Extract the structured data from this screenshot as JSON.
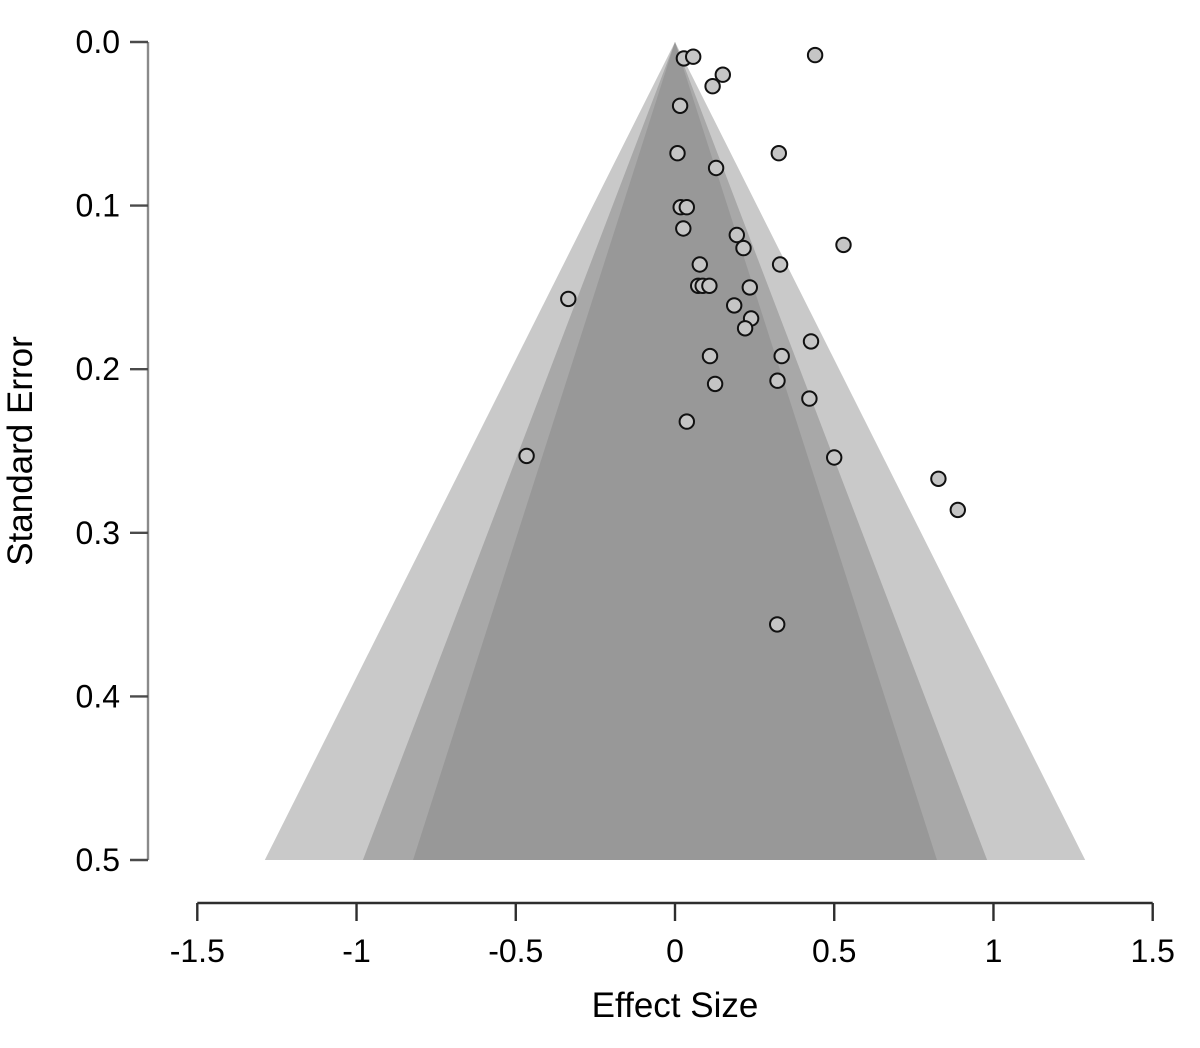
{
  "chart_data": {
    "type": "scatter",
    "subtype": "contour-enhanced-funnel-plot",
    "title": "",
    "xlabel": "Effect Size",
    "ylabel": "Standard Error",
    "xlim": [
      -1.5,
      1.5
    ],
    "ylim": [
      0.0,
      0.5
    ],
    "y_axis_reversed": true,
    "grid": false,
    "legend": "none",
    "x_ticks": [
      {
        "value": -1.5,
        "label": "-1.5"
      },
      {
        "value": -1.0,
        "label": "-1"
      },
      {
        "value": -0.5,
        "label": "-0.5"
      },
      {
        "value": 0.0,
        "label": "0"
      },
      {
        "value": 0.5,
        "label": "0.5"
      },
      {
        "value": 1.0,
        "label": "1"
      },
      {
        "value": 1.5,
        "label": "1.5"
      }
    ],
    "y_ticks": [
      {
        "value": 0.0,
        "label": "0.0"
      },
      {
        "value": 0.1,
        "label": "0.1"
      },
      {
        "value": 0.2,
        "label": "0.2"
      },
      {
        "value": 0.3,
        "label": "0.3"
      },
      {
        "value": 0.4,
        "label": "0.4"
      },
      {
        "value": 0.5,
        "label": "0.5"
      }
    ],
    "funnel": {
      "center_effect": 0.0,
      "apex_se": 0.0,
      "max_se": 0.5,
      "contours": [
        {
          "level": "90%",
          "z": 1.645,
          "fill": "#989898"
        },
        {
          "level": "95%",
          "z": 1.96,
          "fill": "#a8a8a8"
        },
        {
          "level": "99%",
          "z": 2.576,
          "fill": "#c9c9c9"
        }
      ]
    },
    "points": [
      {
        "effect": 0.028,
        "se": 0.01
      },
      {
        "effect": 0.057,
        "se": 0.009
      },
      {
        "effect": 0.44,
        "se": 0.008
      },
      {
        "effect": 0.15,
        "se": 0.02
      },
      {
        "effect": 0.118,
        "se": 0.027
      },
      {
        "effect": 0.016,
        "se": 0.039
      },
      {
        "effect": 0.008,
        "se": 0.068
      },
      {
        "effect": 0.326,
        "se": 0.068
      },
      {
        "effect": 0.129,
        "se": 0.077
      },
      {
        "effect": 0.018,
        "se": 0.101
      },
      {
        "effect": 0.037,
        "se": 0.101
      },
      {
        "effect": 0.026,
        "se": 0.114
      },
      {
        "effect": 0.194,
        "se": 0.118
      },
      {
        "effect": 0.529,
        "se": 0.124
      },
      {
        "effect": 0.215,
        "se": 0.126
      },
      {
        "effect": 0.078,
        "se": 0.136
      },
      {
        "effect": 0.33,
        "se": 0.136
      },
      {
        "effect": 0.073,
        "se": 0.149
      },
      {
        "effect": 0.087,
        "se": 0.149
      },
      {
        "effect": 0.108,
        "se": 0.149
      },
      {
        "effect": 0.235,
        "se": 0.15
      },
      {
        "effect": -0.335,
        "se": 0.157
      },
      {
        "effect": 0.186,
        "se": 0.161
      },
      {
        "effect": 0.239,
        "se": 0.169
      },
      {
        "effect": 0.22,
        "se": 0.175
      },
      {
        "effect": 0.427,
        "se": 0.183
      },
      {
        "effect": 0.11,
        "se": 0.192
      },
      {
        "effect": 0.335,
        "se": 0.192
      },
      {
        "effect": 0.322,
        "se": 0.207
      },
      {
        "effect": 0.126,
        "se": 0.209
      },
      {
        "effect": 0.422,
        "se": 0.218
      },
      {
        "effect": 0.037,
        "se": 0.232
      },
      {
        "effect": -0.466,
        "se": 0.253
      },
      {
        "effect": 0.5,
        "se": 0.254
      },
      {
        "effect": 0.827,
        "se": 0.267
      },
      {
        "effect": 0.888,
        "se": 0.286
      },
      {
        "effect": 0.321,
        "se": 0.356
      }
    ]
  },
  "style": {
    "background": "#ffffff",
    "point_fill": "#c5c5c5",
    "point_stroke": "#111111",
    "x_axis_color": "#2e2e2e",
    "y_axis_color": "#8a8a8a",
    "y_tick_color": "#4a4a4a",
    "text_color": "#000000"
  }
}
